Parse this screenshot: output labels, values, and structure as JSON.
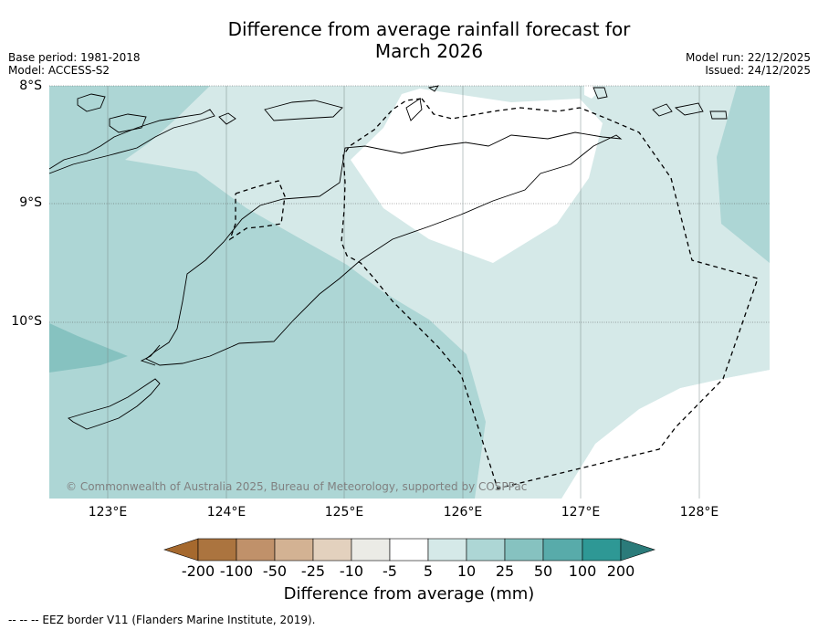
{
  "title_line1": "Difference from average rainfall forecast for",
  "title_line2": "March 2026",
  "base_period": "Base period: 1981-2018",
  "model": "Model: ACCESS-S2",
  "model_run": "Model run: 22/12/2025",
  "issued": "Issued: 24/12/2025",
  "lat_labels": [
    "8°S",
    "9°S",
    "10°S"
  ],
  "lon_labels": [
    "123°E",
    "124°E",
    "125°E",
    "126°E",
    "127°E",
    "128°E"
  ],
  "copyright": "© Commonwealth of Australia 2025, Bureau of Meteorology, supported by COSPPac",
  "colorbar": {
    "title": "Difference from average (mm)",
    "labels": [
      "-200",
      "-100",
      "-50",
      "-25",
      "-10",
      "-5",
      "5",
      "10",
      "25",
      "50",
      "100",
      "200"
    ],
    "colors": [
      "#a6692e",
      "#ab743f",
      "#c0916a",
      "#d3b293",
      "#e3d1be",
      "#ebebe6",
      "#ffffff",
      "#d5e9e8",
      "#add6d5",
      "#86c2c0",
      "#58abaa",
      "#2e9895",
      "#2b7b7a"
    ]
  },
  "legend_footnote": "--  --  -- EEZ border V11 (Flanders Marine Institute, 2019).",
  "map_data": {
    "lat_range": [
      -11.5,
      -8.0
    ],
    "lon_range": [
      122.5,
      128.6
    ],
    "categories_present": [
      "5-10",
      "10-25",
      "25-50"
    ]
  }
}
